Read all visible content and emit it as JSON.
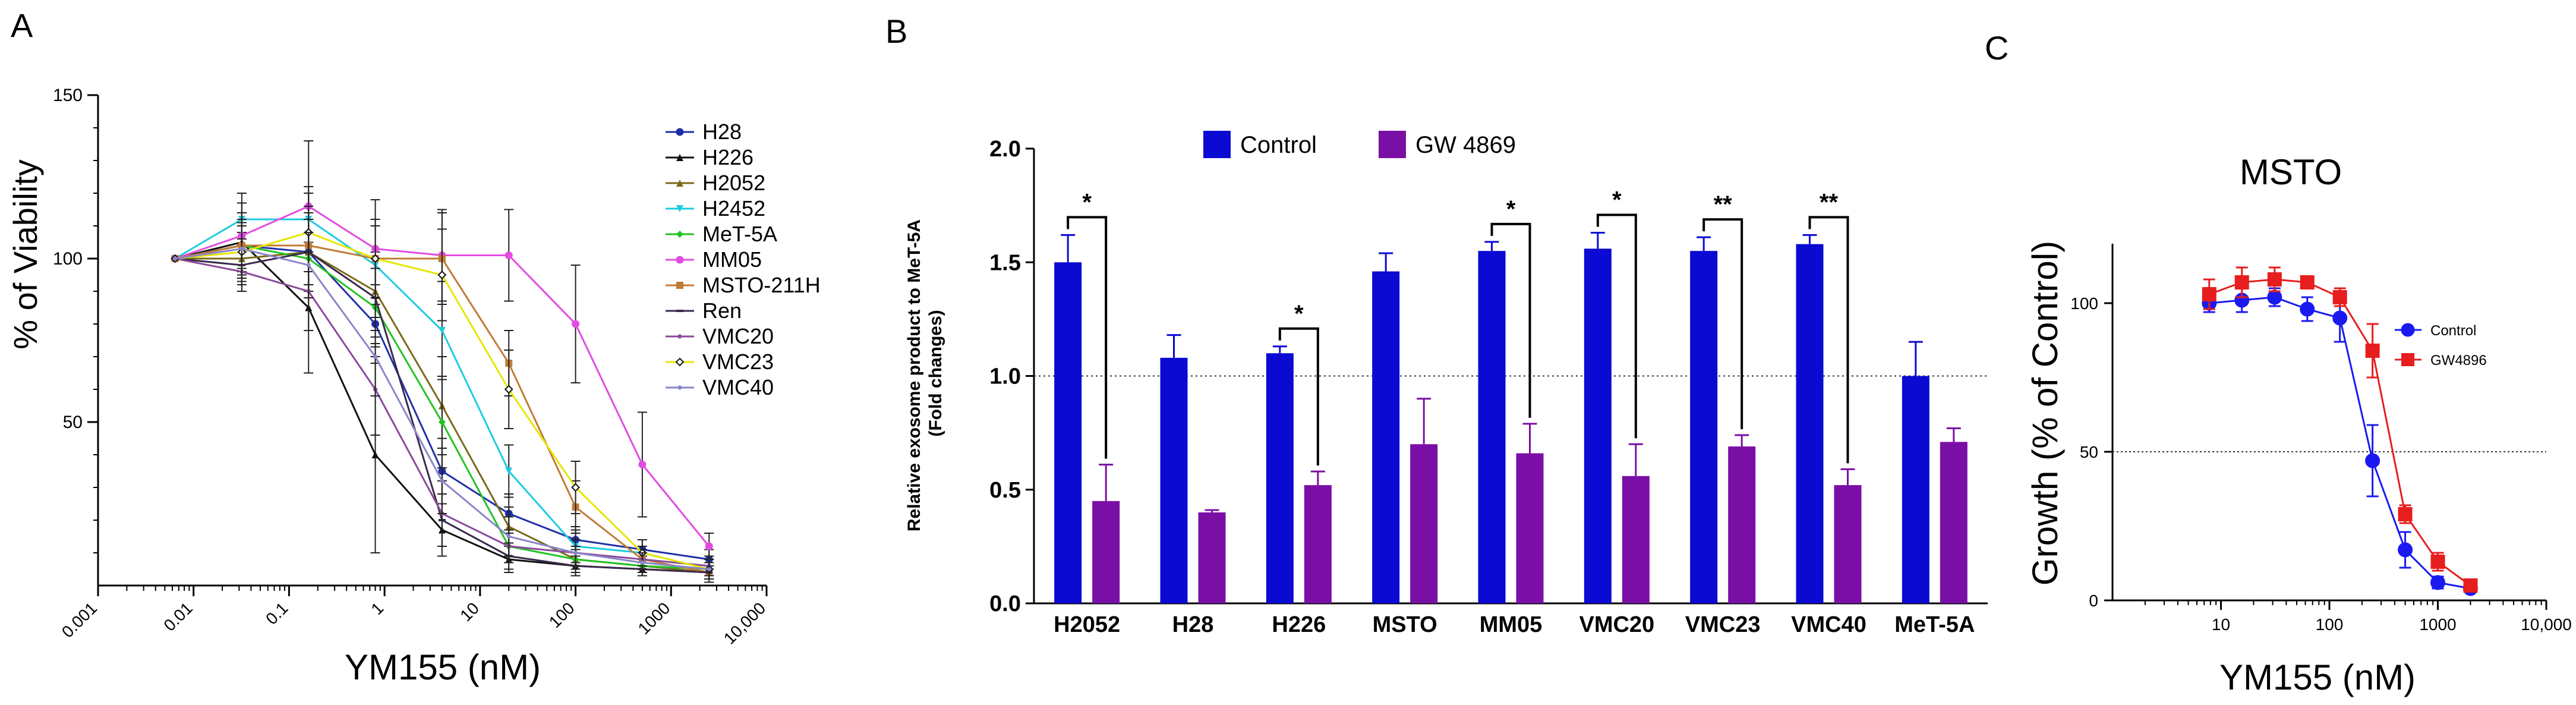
{
  "chart_data": [
    {
      "type": "line",
      "panel_label": "A",
      "title": "",
      "xlabel": "YM155 (nM)",
      "ylabel": "% of Viability",
      "x_scale": "log",
      "xlim": [
        0.001,
        10000
      ],
      "ylim": [
        0,
        150
      ],
      "x_tick_labels": [
        "0.001",
        "0.01",
        "0.1",
        "1",
        "10",
        "100",
        "1000",
        "10,000"
      ],
      "y_tick_labels": [
        "50",
        "100",
        "150"
      ],
      "x": [
        0.0064,
        0.032,
        0.16,
        0.8,
        4,
        20,
        100,
        500,
        2500
      ],
      "legend_position": "right",
      "series": [
        {
          "name": "H28",
          "color": "#1f2fa8",
          "marker": "circle",
          "values": [
            100,
            104,
            102,
            80,
            35,
            22,
            14,
            11,
            8
          ],
          "errors": [
            1,
            10,
            12,
            12,
            10,
            6,
            4,
            3,
            3
          ]
        },
        {
          "name": "H226",
          "color": "#111111",
          "marker": "triangle",
          "values": [
            100,
            105,
            85,
            40,
            17,
            8,
            6,
            5,
            4
          ],
          "errors": [
            1,
            12,
            20,
            30,
            8,
            4,
            3,
            2,
            2
          ]
        },
        {
          "name": "H2052",
          "color": "#7a6a1a",
          "marker": "triangle",
          "values": [
            100,
            100,
            102,
            90,
            55,
            18,
            8,
            6,
            4
          ],
          "errors": [
            1,
            8,
            10,
            12,
            15,
            6,
            3,
            3,
            2
          ]
        },
        {
          "name": "H2452",
          "color": "#1ecbe1",
          "marker": "triangle-down",
          "values": [
            100,
            112,
            112,
            98,
            78,
            35,
            12,
            10,
            5
          ],
          "errors": [
            1,
            8,
            10,
            12,
            15,
            8,
            5,
            4,
            3
          ]
        },
        {
          "name": "MeT-5A",
          "color": "#22c422",
          "marker": "diamond",
          "values": [
            100,
            104,
            100,
            85,
            50,
            12,
            8,
            6,
            5
          ],
          "errors": [
            1,
            8,
            12,
            12,
            14,
            5,
            4,
            3,
            2
          ]
        },
        {
          "name": "MM05",
          "color": "#e34be3",
          "marker": "circle",
          "values": [
            100,
            107,
            116,
            103,
            101,
            101,
            80,
            37,
            12
          ],
          "errors": [
            1,
            10,
            20,
            15,
            14,
            14,
            18,
            16,
            4
          ]
        },
        {
          "name": "MSTO-211H",
          "color": "#c07b35",
          "marker": "square",
          "values": [
            100,
            104,
            104,
            100,
            100,
            68,
            24,
            8,
            4
          ],
          "errors": [
            1,
            10,
            12,
            12,
            14,
            10,
            8,
            4,
            3
          ]
        },
        {
          "name": "Ren",
          "color": "#3a2a4a",
          "marker": "dash",
          "values": [
            100,
            98,
            102,
            88,
            20,
            9,
            6,
            5,
            4
          ],
          "errors": [
            1,
            8,
            10,
            12,
            8,
            4,
            3,
            2,
            2
          ]
        },
        {
          "name": "VMC20",
          "color": "#8a4a9a",
          "marker": "line",
          "values": [
            100,
            96,
            90,
            60,
            22,
            12,
            10,
            8,
            6
          ],
          "errors": [
            1,
            6,
            12,
            14,
            10,
            5,
            4,
            3,
            3
          ]
        },
        {
          "name": "VMC23",
          "color": "#e6e600",
          "marker": "diamond-open",
          "values": [
            100,
            102,
            108,
            100,
            95,
            60,
            30,
            10,
            5
          ],
          "errors": [
            1,
            8,
            12,
            12,
            14,
            12,
            8,
            4,
            3
          ]
        },
        {
          "name": "VMC40",
          "color": "#8a86c9",
          "marker": "line",
          "values": [
            100,
            103,
            98,
            70,
            32,
            15,
            10,
            7,
            5
          ],
          "errors": [
            1,
            8,
            10,
            12,
            10,
            6,
            4,
            3,
            3
          ]
        }
      ]
    },
    {
      "type": "bar",
      "panel_label": "B",
      "title": "",
      "xlabel": "",
      "ylabel_line1": "Relative exosome product to MeT-5A",
      "ylabel_line2": "(Fold changes)",
      "ylim": [
        0,
        2.0
      ],
      "y_tick_labels": [
        "0.0",
        "0.5",
        "1.0",
        "1.5",
        "2.0"
      ],
      "reference_line": 1.0,
      "legend_position": "top",
      "categories": [
        "H2052",
        "H28",
        "H226",
        "MSTO",
        "MM05",
        "VMC20",
        "VMC23",
        "VMC40",
        "MeT-5A"
      ],
      "series": [
        {
          "name": "Control",
          "color": "#0a0ad2",
          "values": [
            1.5,
            1.08,
            1.1,
            1.46,
            1.55,
            1.56,
            1.55,
            1.58,
            1.0
          ],
          "errors": [
            0.12,
            0.1,
            0.03,
            0.08,
            0.04,
            0.07,
            0.06,
            0.04,
            0.15
          ]
        },
        {
          "name": "GW 4869",
          "color": "#7a0fa6",
          "values": [
            0.45,
            0.4,
            0.52,
            0.7,
            0.66,
            0.56,
            0.69,
            0.52,
            0.71
          ],
          "errors": [
            0.16,
            0.01,
            0.06,
            0.2,
            0.13,
            0.14,
            0.05,
            0.07,
            0.06
          ]
        }
      ],
      "significance": [
        {
          "category": "H2052",
          "label": "*"
        },
        {
          "category": "H226",
          "label": "*"
        },
        {
          "category": "MM05",
          "label": "*"
        },
        {
          "category": "VMC20",
          "label": "*"
        },
        {
          "category": "VMC23",
          "label": "**"
        },
        {
          "category": "VMC40",
          "label": "**"
        }
      ]
    },
    {
      "type": "line",
      "panel_label": "C",
      "title": "MSTO",
      "xlabel": "YM155 (nM)",
      "ylabel": "Growth (% of Control)",
      "x_scale": "log",
      "xlim": [
        1,
        10000
      ],
      "ylim": [
        0,
        120
      ],
      "x_tick_labels": [
        "10",
        "100",
        "1000",
        "10,000"
      ],
      "y_tick_labels": [
        "0",
        "50",
        "100"
      ],
      "reference_line": 50,
      "x": [
        7.8,
        15.6,
        31.25,
        62.5,
        125,
        250,
        500,
        1000,
        2000
      ],
      "legend_position": "right",
      "series": [
        {
          "name": "Control",
          "color": "#1a1af0",
          "marker": "circle",
          "values": [
            100,
            101,
            102,
            98,
            95,
            47,
            17,
            6,
            4
          ],
          "errors": [
            3,
            4,
            3,
            4,
            8,
            12,
            6,
            2,
            1
          ]
        },
        {
          "name": "GW4896",
          "color": "#e61e1e",
          "marker": "square",
          "values": [
            103,
            107,
            108,
            107,
            102,
            84,
            29,
            13,
            5
          ],
          "errors": [
            5,
            5,
            4,
            2,
            3,
            9,
            3,
            3,
            2
          ]
        }
      ]
    }
  ]
}
